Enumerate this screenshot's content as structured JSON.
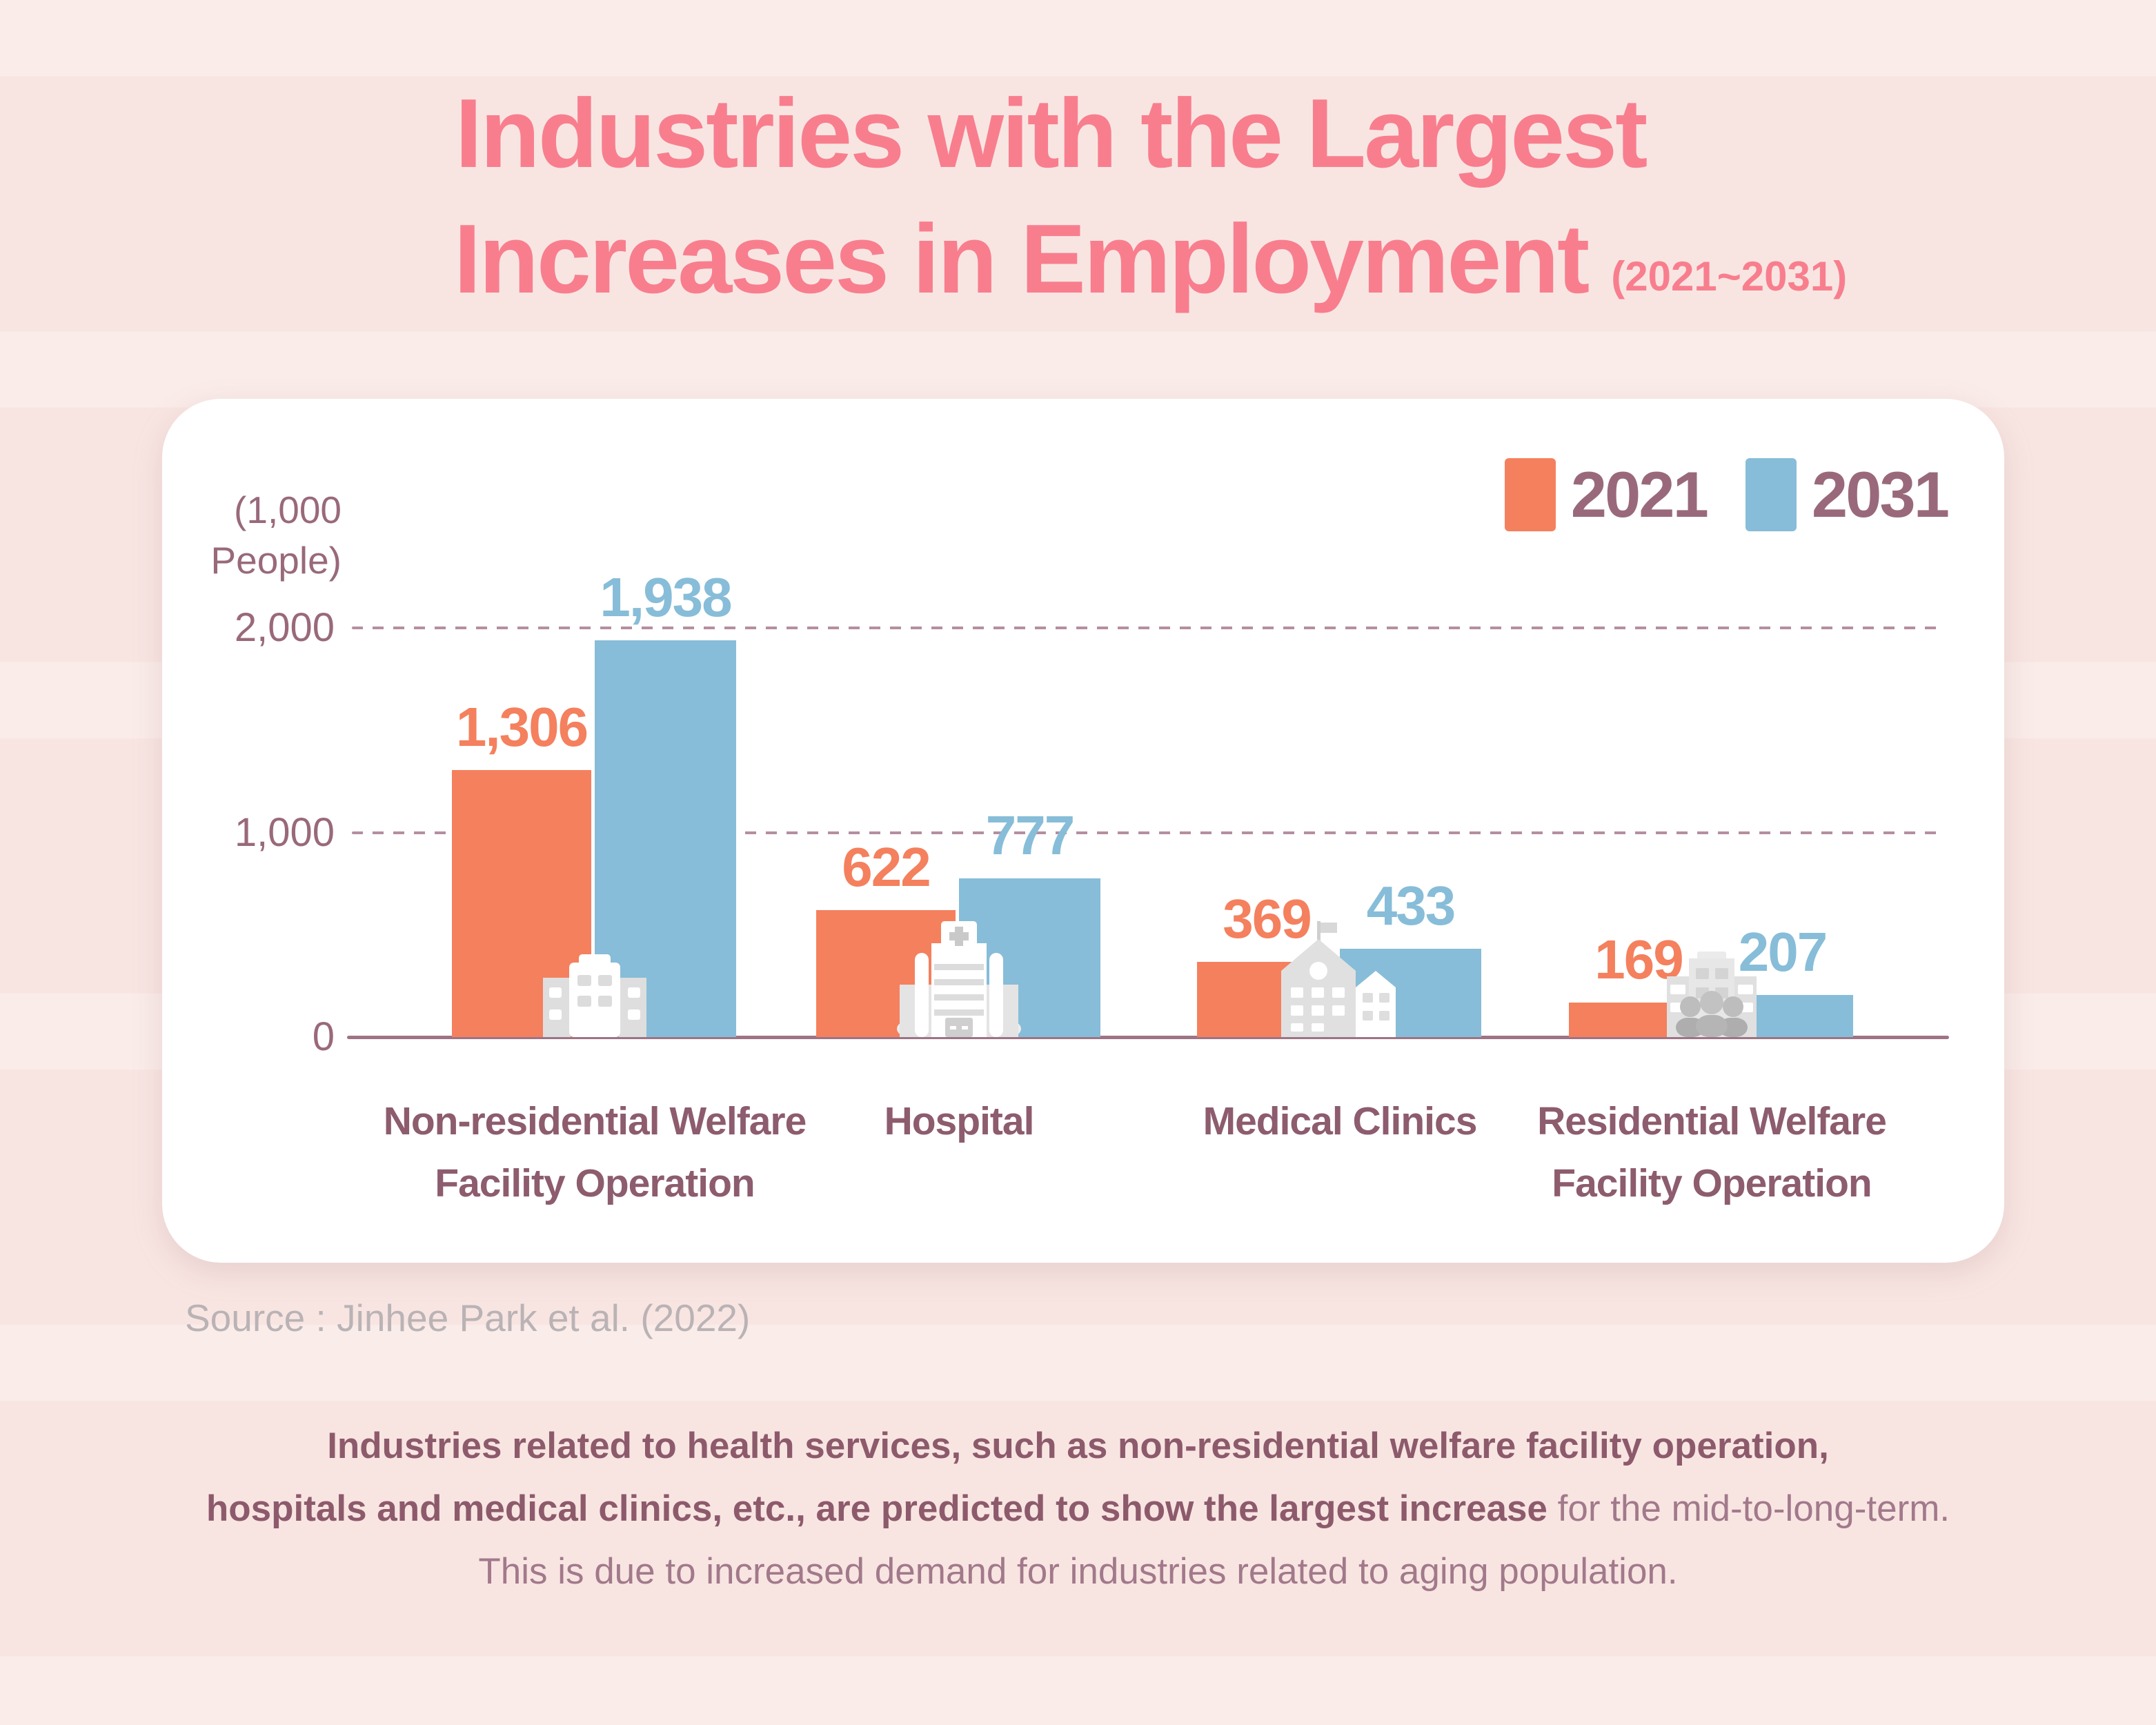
{
  "title": {
    "line1": "Industries with the Largest",
    "line2": "Increases in Employment",
    "period": "(2021~2031)"
  },
  "legend": [
    {
      "label": "2021",
      "color": "#f4805e"
    },
    {
      "label": "2031",
      "color": "#87bdd8"
    }
  ],
  "chart_data": {
    "type": "bar",
    "title": "Industries with the Largest Increases in Employment (2021~2031)",
    "ylabel": "(1,000 People)",
    "unit_lines": [
      "(1,000",
      "People)"
    ],
    "categories": [
      "Non-residential Welfare Facility Operation",
      "Hospital",
      "Medical Clinics",
      "Residential Welfare Facility Operation"
    ],
    "category_lines": [
      [
        "Non-residential Welfare",
        "Facility Operation"
      ],
      [
        "Hospital"
      ],
      [
        "Medical Clinics"
      ],
      [
        "Residential Welfare",
        "Facility Operation"
      ]
    ],
    "series": [
      {
        "name": "2021",
        "color": "#f4805e",
        "values": [
          1306,
          622,
          369,
          169
        ]
      },
      {
        "name": "2031",
        "color": "#87bdd8",
        "values": [
          1938,
          777,
          433,
          207
        ]
      }
    ],
    "value_labels": [
      [
        "1,306",
        "622",
        "369",
        "169"
      ],
      [
        "1,938",
        "777",
        "433",
        "207"
      ]
    ],
    "ylim": [
      0,
      2000
    ],
    "y_ticks": [
      "2,000",
      "1,000",
      "0"
    ],
    "y_tick_values": [
      2000,
      1000,
      0
    ],
    "grid_values": [
      2000,
      1000
    ],
    "grid_style": "dashed",
    "legend_position": "top-right",
    "icons": [
      "office-building-icon",
      "hospital-icon",
      "clinics-icon",
      "residential-welfare-icon"
    ]
  },
  "source": "Source : Jinhee Park et al. (2022)",
  "paragraph": {
    "line1_bold": "Industries related to health services, such as non-residential welfare facility operation,",
    "line2_bold": "hospitals and medical clinics, etc., are predicted to show the largest increase",
    "line2_regular": " for the mid-to-long-term.",
    "line3": "This is due to increased demand for industries related to aging population."
  },
  "colors": {
    "background": "#f8e5e2",
    "card": "#ffffff",
    "title_pink": "#f87e8e",
    "bar_2021": "#f4805e",
    "bar_2031": "#87bdd8",
    "axis_mauve": "#99697b",
    "category_mauve": "#8d5c6e",
    "summary_bold": "#8d5a6c",
    "summary_regular": "#a2798b",
    "source_gray": "#bab3b5",
    "baseline": "#9c7485",
    "gridline": "#b48fa0",
    "icon_gray": "#e3e3e3"
  }
}
